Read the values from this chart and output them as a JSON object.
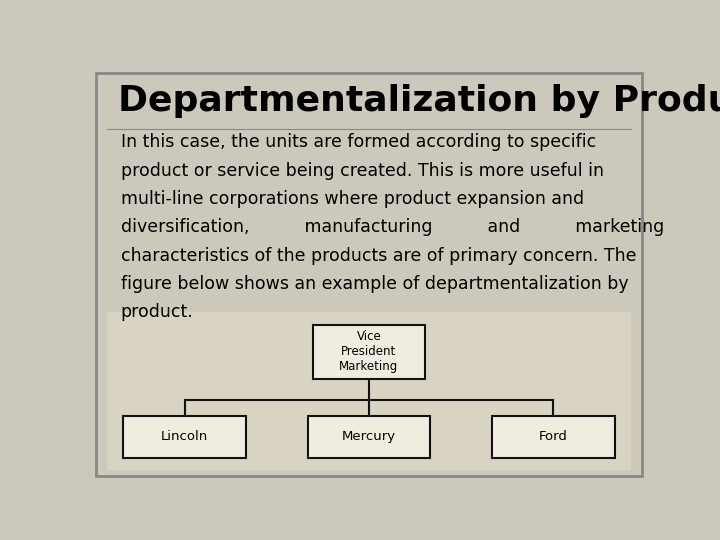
{
  "title": "Departmentalization by Product",
  "body_text": "In this case, the units are formed according to specific product or service being created. This is more useful in multi-line corporations where product expansion and diversification,          manufacturing         and         marketing characteristics of the products are of primary concern. The figure below shows an example of departmentalization by product.",
  "bg_color": "#cdc8bc",
  "slide_bg": "#d9d3c3",
  "border_color": "#888888",
  "title_fontsize": 26,
  "body_fontsize": 12.5,
  "org_top_label": "Vice\nPresident\nMarketing",
  "org_children": [
    "Lincoln",
    "Mercury",
    "Ford"
  ],
  "box_facecolor": "#f0ece0",
  "box_edgecolor": "#111111",
  "line_color": "#111111"
}
